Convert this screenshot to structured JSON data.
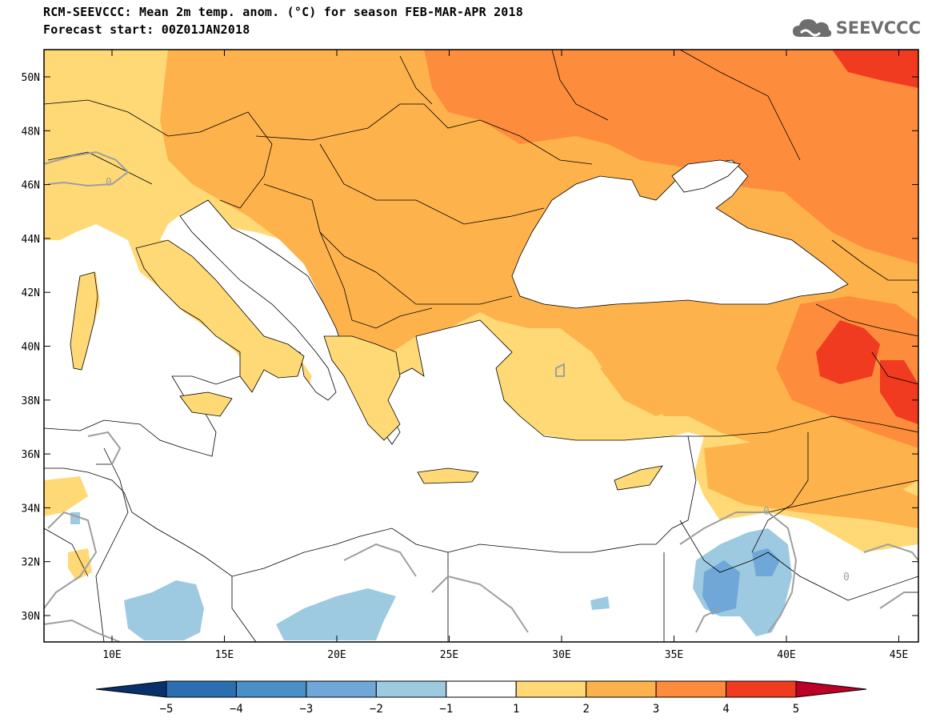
{
  "header": {
    "title_line1": "RCM-SEEVCCC: Mean 2m temp. anom. (°C) for season FEB-MAR-APR 2018",
    "title_line2": "Forecast start: 00Z01JAN2018",
    "logo_text": "SEEVCCC",
    "logo_icon": "cloud-icon"
  },
  "map": {
    "lat_labels": [
      "50N",
      "48N",
      "46N",
      "44N",
      "42N",
      "40N",
      "38N",
      "36N",
      "34N",
      "32N",
      "30N"
    ],
    "lon_labels": [
      "10E",
      "15E",
      "20E",
      "25E",
      "30E",
      "35E",
      "40E",
      "45E"
    ],
    "contour_label": "0",
    "sea_color": "#ffffff",
    "land_neutral_color": "#ffffff"
  },
  "colorbar": {
    "labels": [
      "−5",
      "−4",
      "−3",
      "−2",
      "−1",
      "1",
      "2",
      "3",
      "4",
      "5"
    ],
    "colors": [
      "#08306b",
      "#2c6fb0",
      "#4a90c8",
      "#6fa8d8",
      "#9ecae1",
      "#ffffff",
      "#fed976",
      "#feb24c",
      "#fd8d3c",
      "#f03b20",
      "#bd0026"
    ]
  }
}
